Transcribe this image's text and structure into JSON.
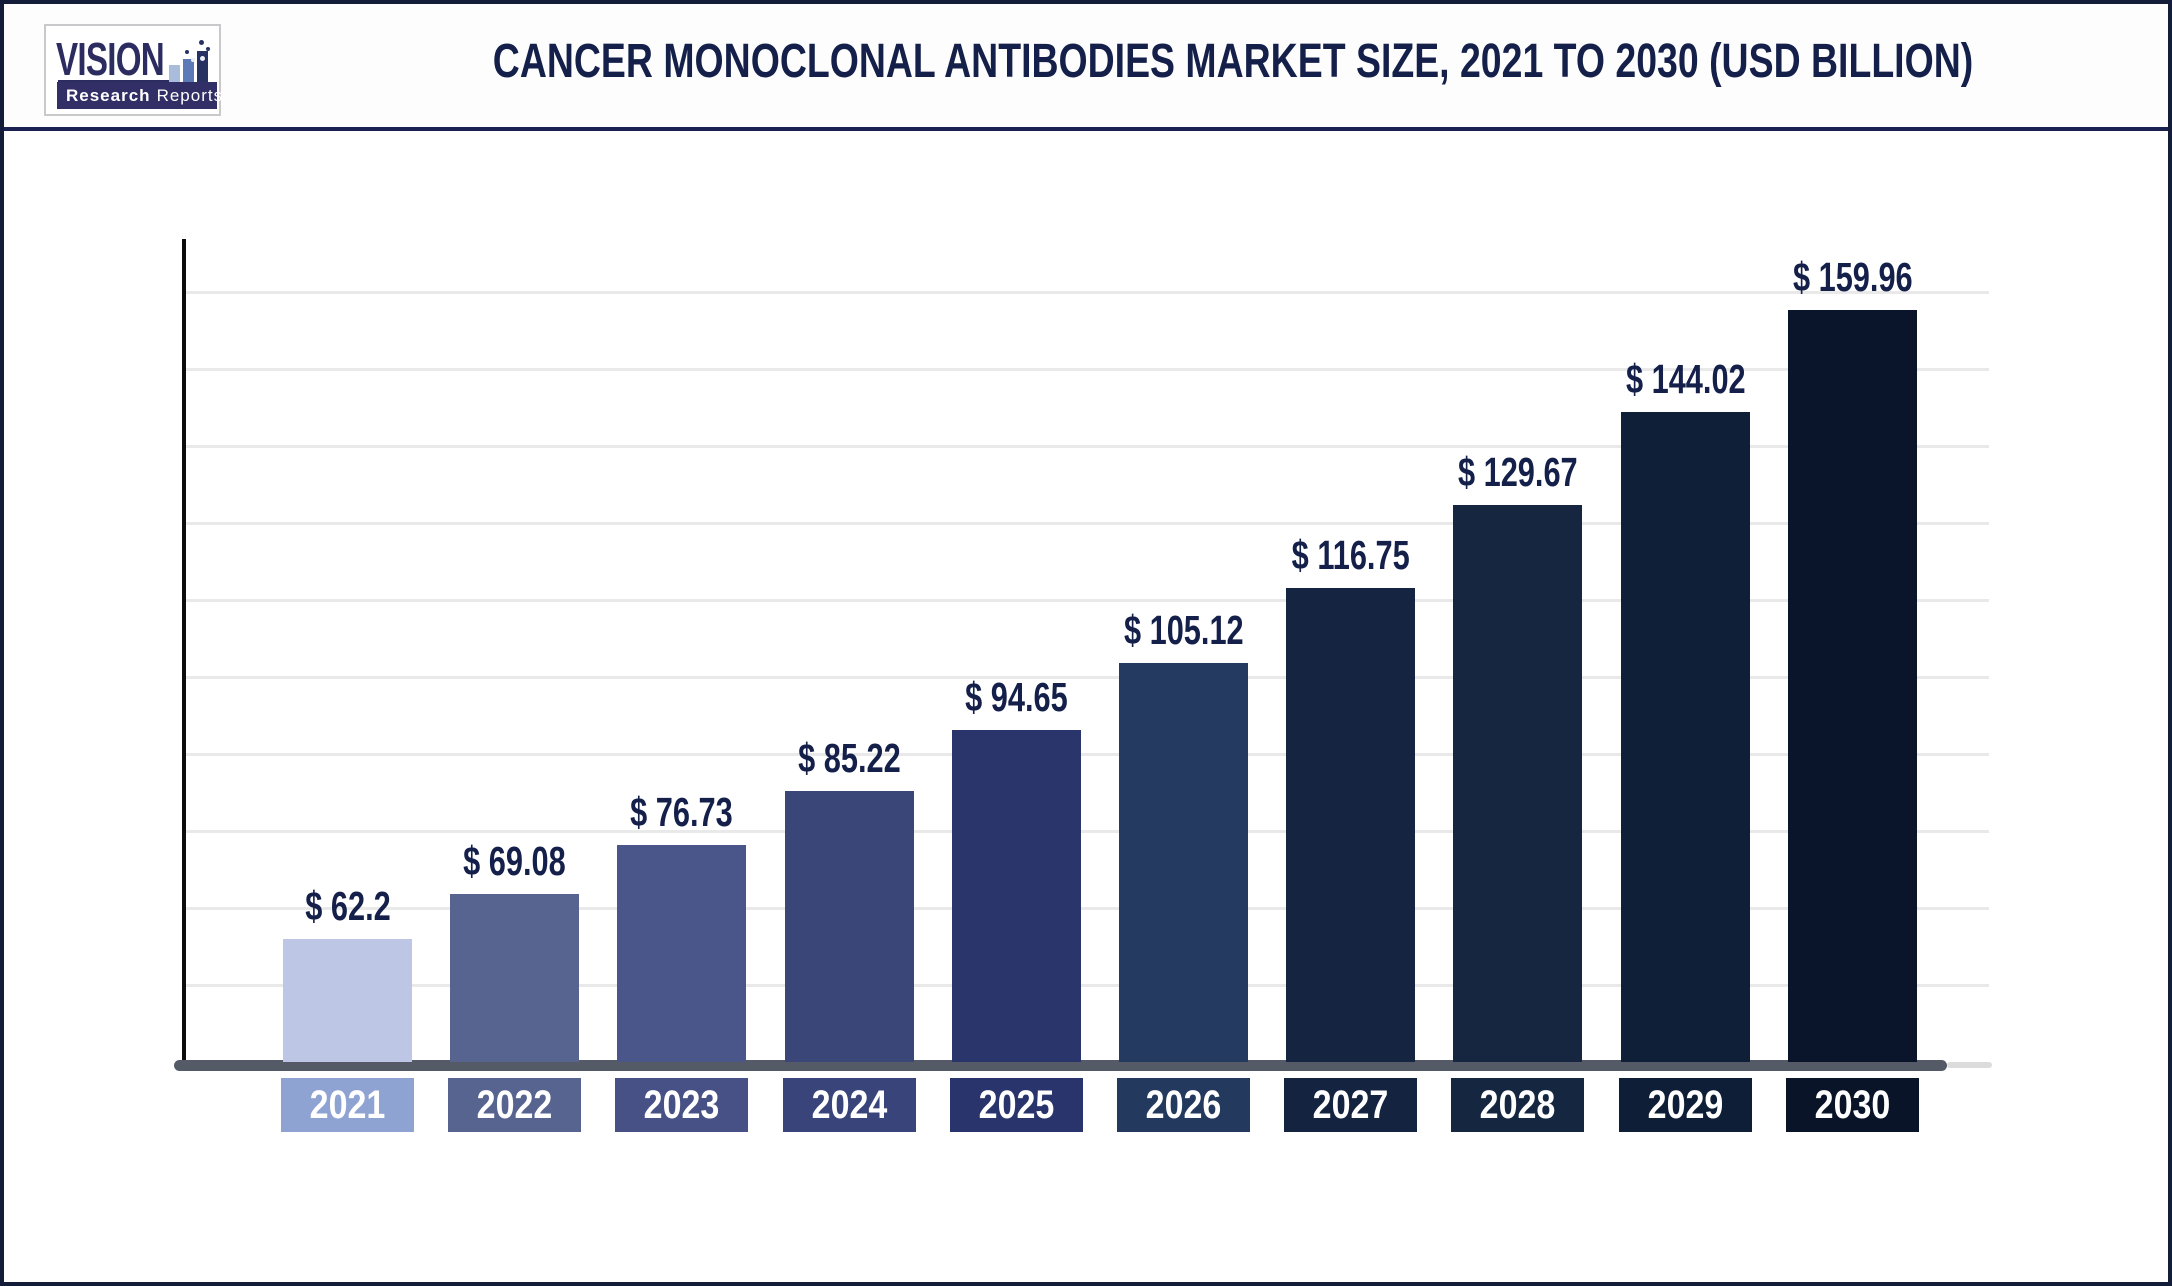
{
  "header": {
    "logo": {
      "brand": "VISION",
      "subtitle_bold": "Research",
      "subtitle_light": "Reports"
    }
  },
  "chart_data": {
    "type": "bar",
    "title": "CANCER MONOCLONAL ANTIBODIES MARKET SIZE, 2021 TO 2030 (USD BILLION)",
    "unit": "USD Billion",
    "categories": [
      "2021",
      "2022",
      "2023",
      "2024",
      "2025",
      "2026",
      "2027",
      "2028",
      "2029",
      "2030"
    ],
    "values": [
      62.2,
      69.08,
      76.73,
      85.22,
      94.65,
      105.12,
      116.75,
      129.67,
      144.02,
      159.96
    ],
    "value_labels": [
      "$ 62.2",
      "$ 69.08",
      "$ 76.73",
      "$ 85.22",
      "$ 94.65",
      "$ 105.12",
      "$ 116.75",
      "$ 129.67",
      "$ 144.02",
      "$ 159.96"
    ],
    "xlabel": "",
    "ylabel": "",
    "ylim": [
      43,
      171
    ],
    "grid": true,
    "legend": false,
    "bar_colors": [
      "#bdc6e5",
      "#56648f",
      "#4a558a",
      "#3a4578",
      "#2a356b",
      "#243a60",
      "#152440",
      "#162641",
      "#101f38",
      "#0a142b"
    ],
    "tick_colors": [
      "#8fa3d3",
      "#56648f",
      "#475185",
      "#38447a",
      "#28346b",
      "#23395e",
      "#142340",
      "#152641",
      "#0f1e37",
      "#0a1429"
    ],
    "accent_colors": {
      "title_text": "#14204a",
      "axis_line": "#0c0c0e",
      "axis_bar": "#545a66",
      "gridline": "#e9e9ea",
      "page_border": "#131c38",
      "header_rule": "#1b2150",
      "logo_navy": "#312f65"
    }
  }
}
